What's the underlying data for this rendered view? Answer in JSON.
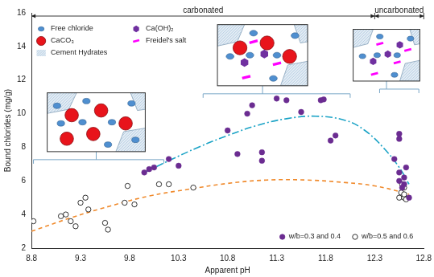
{
  "chart_data": {
    "type": "scatter",
    "x_label": "Apparent pH",
    "y_label": "Bound chlorides (mg/g)",
    "xlim": [
      8.8,
      12.8
    ],
    "xticks": [
      8.8,
      9.3,
      9.8,
      10.3,
      10.8,
      11.3,
      11.8,
      12.3,
      12.8
    ],
    "ylim": [
      2,
      16
    ],
    "yticks": [
      2,
      4,
      6,
      8,
      10,
      12,
      14,
      16
    ],
    "grid": false,
    "legend": "lower right",
    "series": [
      {
        "name": "w/b=0.3 and 0.4",
        "color": "#6b2c91",
        "marker": "filled circle",
        "x": [
          9.95,
          10.0,
          10.05,
          10.2,
          10.3,
          10.8,
          10.9,
          11.0,
          11.05,
          11.15,
          11.15,
          11.3,
          11.4,
          11.55,
          11.75,
          11.78,
          11.85,
          11.9,
          12.5,
          12.55,
          12.55,
          12.55,
          12.55,
          12.58,
          12.6,
          12.6,
          12.62,
          12.65
        ],
        "values": [
          6.5,
          6.7,
          6.8,
          7.3,
          6.9,
          9.0,
          7.6,
          10.0,
          10.5,
          7.7,
          7.2,
          10.9,
          10.8,
          10.1,
          10.8,
          10.85,
          8.4,
          8.7,
          7.3,
          8.8,
          8.5,
          6.5,
          6.0,
          5.6,
          6.2,
          5.8,
          6.8,
          5.0
        ]
      },
      {
        "name": "w/b=0.5 and 0.6",
        "color": "#000000",
        "marker": "open circle",
        "x": [
          8.82,
          9.1,
          9.15,
          9.2,
          9.25,
          9.3,
          9.35,
          9.38,
          9.55,
          9.58,
          9.75,
          9.78,
          9.85,
          10.1,
          10.2,
          10.45,
          12.55,
          12.57,
          12.58,
          12.6,
          12.6,
          12.6,
          12.62
        ],
        "values": [
          3.6,
          3.9,
          4.0,
          3.6,
          3.3,
          4.7,
          5.0,
          4.3,
          3.5,
          3.1,
          4.7,
          5.7,
          4.6,
          5.8,
          5.8,
          5.6,
          5.0,
          5.3,
          5.8,
          5.6,
          5.0,
          5.2,
          4.9
        ]
      }
    ],
    "fitted_curves": [
      {
        "color": "#1ba3c6",
        "line_style": "dashdot",
        "x": [
          9.95,
          10.2,
          10.5,
          10.8,
          11.1,
          11.4,
          11.7,
          12.0,
          12.2,
          12.4,
          12.55,
          12.65
        ],
        "values": [
          6.5,
          7.2,
          8.0,
          8.7,
          9.3,
          9.7,
          9.85,
          9.6,
          9.0,
          7.9,
          6.8,
          5.8
        ]
      },
      {
        "color": "#f08a2c",
        "line_style": "dashed",
        "x": [
          8.8,
          9.2,
          9.6,
          10.0,
          10.4,
          10.8,
          11.2,
          11.6,
          12.0,
          12.3,
          12.6,
          12.65
        ],
        "values": [
          3.0,
          3.8,
          4.5,
          5.1,
          5.5,
          5.85,
          6.05,
          6.05,
          5.9,
          5.7,
          5.3,
          5.2
        ]
      }
    ],
    "regions": [
      {
        "label": "carbonated",
        "from": 8.8,
        "to": 12.3
      },
      {
        "label": "uncarbonated",
        "from": 12.3,
        "to": 12.8
      }
    ],
    "schematic_key": [
      {
        "label": "Free chloride",
        "color": "#4f8fd0",
        "marker": "ellipse"
      },
      {
        "label": "Ca(OH)₂",
        "color": "#7030a0",
        "marker": "hexagon"
      },
      {
        "label": "CaCO₃",
        "color": "#e8141b",
        "marker": "circle"
      },
      {
        "label": "Freidel's salt",
        "color": "#ff00ff",
        "marker": "rectangle"
      },
      {
        "label": "Cement Hydrates",
        "color": "#a8c4dc",
        "marker": "hatch"
      }
    ],
    "schematics": [
      {
        "range": [
          8.82,
          10.15
        ],
        "components": [
          "Cement Hydrates",
          "CaCO₃",
          "Free chloride"
        ]
      },
      {
        "range": [
          10.55,
          12.05
        ],
        "components": [
          "Cement Hydrates",
          "CaCO₃",
          "Ca(OH)₂",
          "Freidel's salt",
          "Free chloride"
        ]
      },
      {
        "range": [
          12.35,
          12.75
        ],
        "components": [
          "Cement Hydrates",
          "Ca(OH)₂",
          "Freidel's salt",
          "Free chloride"
        ]
      }
    ]
  }
}
